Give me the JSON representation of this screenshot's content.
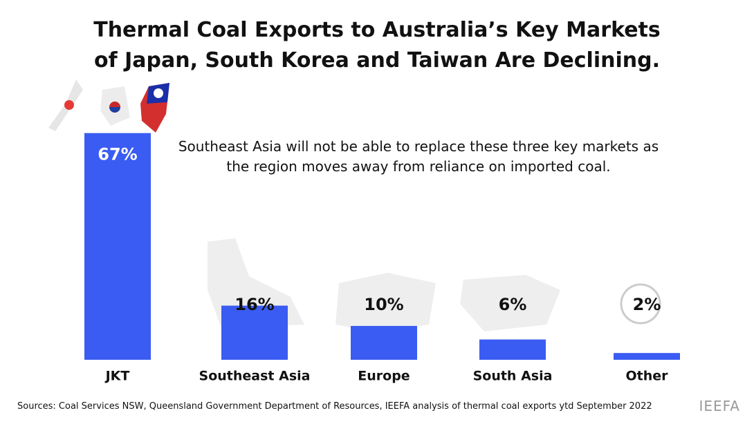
{
  "chart_data": {
    "type": "bar",
    "title": "Thermal Coal Exports to Australia’s Key Markets of Japan, South Korea and Taiwan Are Declining.",
    "annotation": "Southeast Asia will not be able to replace these three key markets as the region moves away from reliance on imported coal.",
    "categories": [
      "JKT",
      "Southeast Asia",
      "Europe",
      "South Asia",
      "Other"
    ],
    "values": [
      67,
      16,
      10,
      6,
      2
    ],
    "value_labels": [
      "67%",
      "16%",
      "10%",
      "6%",
      "2%"
    ],
    "color": "#3a5cf2",
    "source": "Sources: Coal Services NSW, Queensland Government Department of Resources, IEEFA analysis of thermal coal exports ytd September 2022",
    "brand": "IEEFA"
  }
}
